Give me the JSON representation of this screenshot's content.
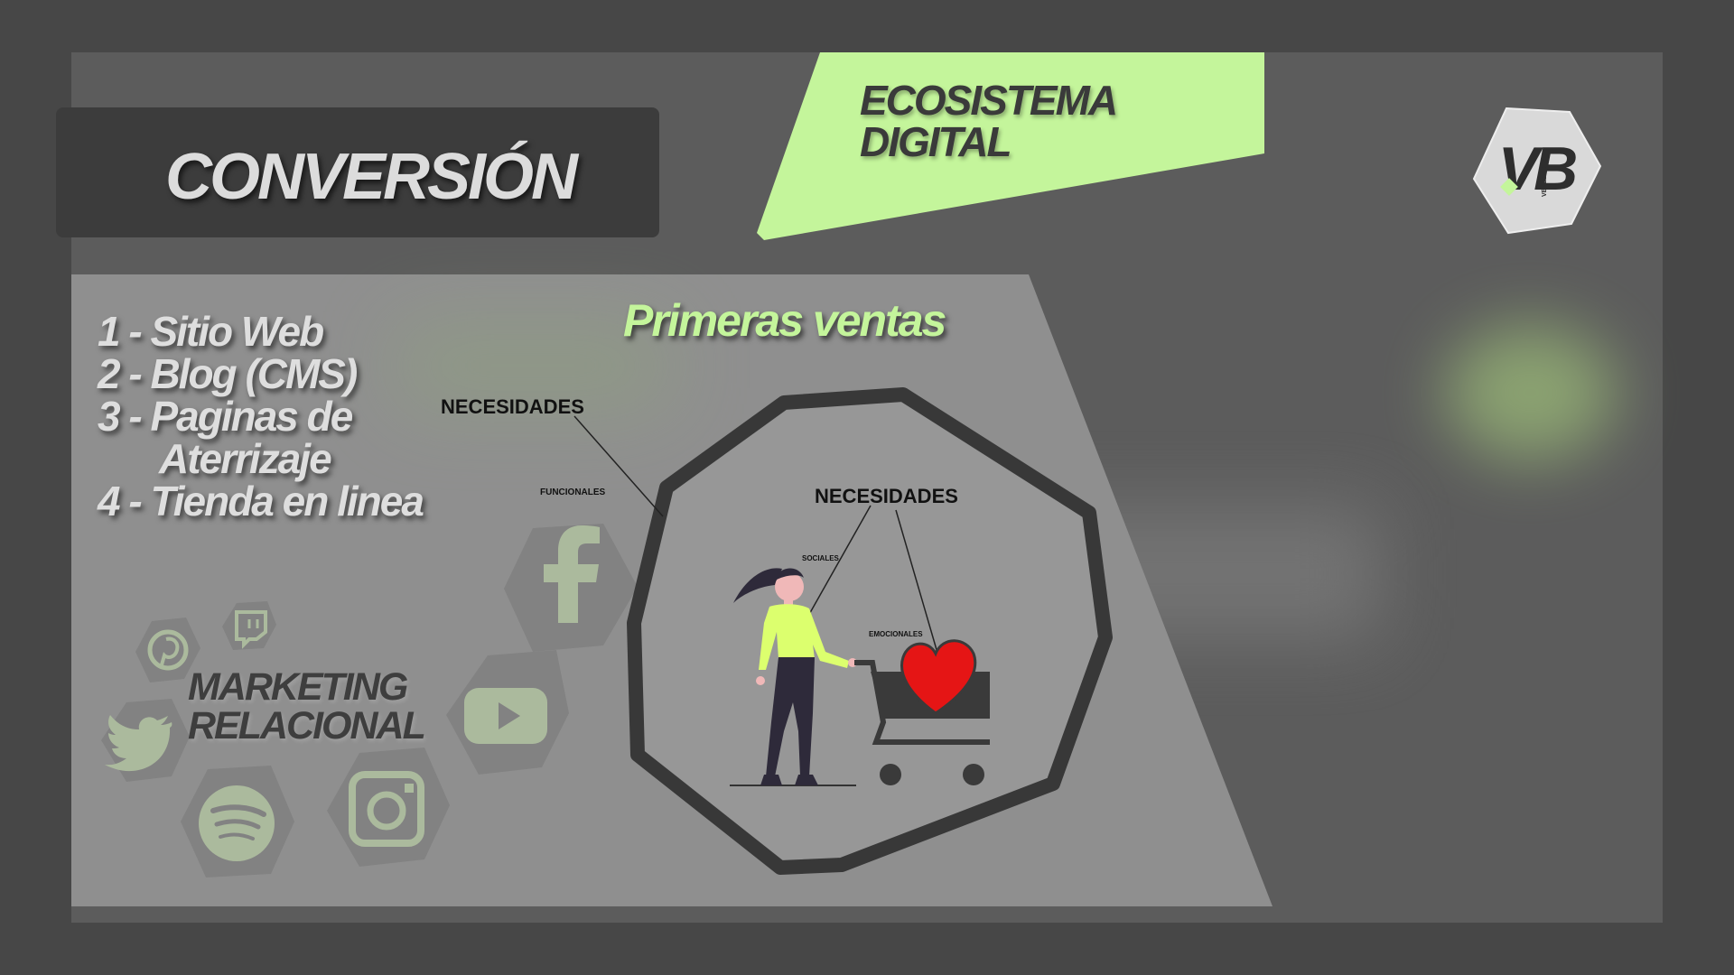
{
  "header": {
    "title": "CONVERSIÓN",
    "badge_line1": "ECOSISTEMA",
    "badge_line2": "DIGITAL"
  },
  "logo": {
    "text": "VB",
    "subtext": "VENEZUELA"
  },
  "list": {
    "items": [
      "1 - Sitio Web",
      "2 - Blog (CMS)",
      "3 - Paginas de",
      "Aterrizaje",
      "4 - Tienda en linea"
    ]
  },
  "subtitle": "Primeras ventas",
  "labels": {
    "needs_top": "NECESIDADES",
    "functional": "FUNCIONALES",
    "needs_inner": "NECESIDADES",
    "social": "SOCIALES",
    "emotional": "EMOCIONALES"
  },
  "marketing": {
    "line1": "MARKETING",
    "line2": "RELACIONAL"
  },
  "social_icons": [
    "facebook-icon",
    "twitch-icon",
    "pinterest-icon",
    "twitter-icon",
    "youtube-icon",
    "spotify-icon",
    "instagram-icon"
  ],
  "colors": {
    "accent_green": "#c4f59b",
    "background": "#5c5c5c",
    "panel": "#8f8f8f",
    "dark": "#3c3c3c",
    "heart": "#e51515"
  }
}
